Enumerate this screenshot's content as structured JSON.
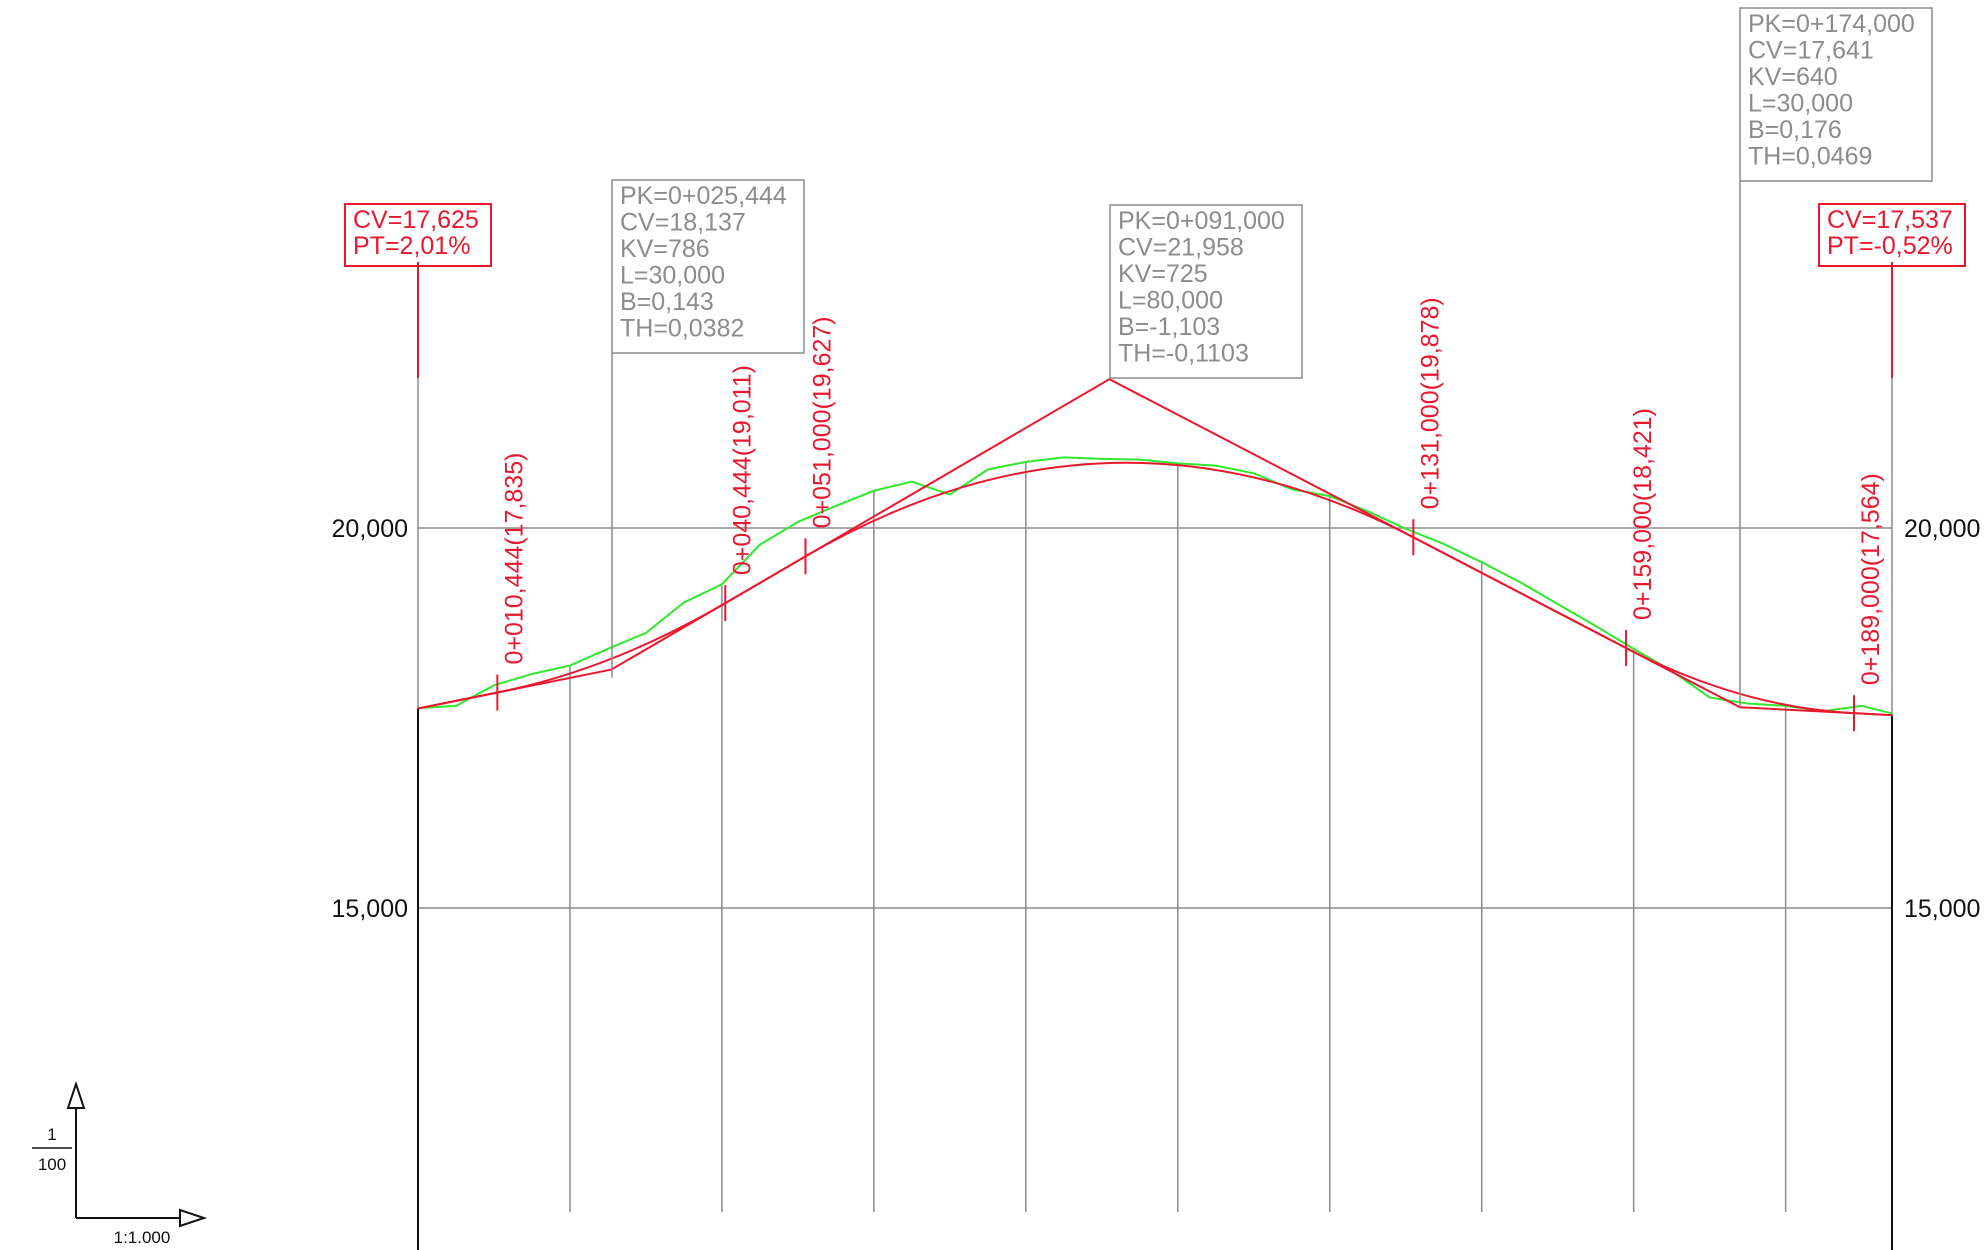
{
  "profile": {
    "y_axis": {
      "min": 10.0,
      "max": 22.0,
      "major_ticks": [
        15.0,
        20.0
      ],
      "tick_labels": [
        "15,000",
        "20,000"
      ]
    },
    "x_axis": {
      "min": 0,
      "max": 194
    },
    "guideline_stations": [
      20,
      40,
      60,
      80,
      100,
      120,
      140,
      160,
      180
    ],
    "vertical_scale": {
      "numerator": "1",
      "denominator": "100"
    },
    "horizontal_scale": "1:1.000",
    "start_point": {
      "station": 0,
      "elevation": 17.625,
      "labels": [
        "CV=17,625",
        "PT=2,01%"
      ]
    },
    "end_point": {
      "station": 194,
      "elevation": 17.537,
      "labels": [
        "CV=17,537",
        "PT=-0,52%"
      ]
    },
    "vertices": [
      {
        "station": 25.444,
        "elevation": 18.137,
        "lines": [
          "PK=0+025,444",
          "CV=18,137",
          "KV=786",
          "L=30,000",
          "B=0,143",
          "TH=0,0382"
        ]
      },
      {
        "station": 91.0,
        "elevation": 21.958,
        "lines": [
          "PK=0+091,000",
          "CV=21,958",
          "KV=725",
          "L=80,000",
          "B=-1,103",
          "TH=-0,1103"
        ]
      },
      {
        "station": 174.0,
        "elevation": 17.641,
        "lines": [
          "PK=0+174,000",
          "CV=17,641",
          "KV=640",
          "L=30,000",
          "B=0,176",
          "TH=0,0469"
        ]
      }
    ],
    "tangent_points": [
      {
        "station": 10.444,
        "elevation": 17.835,
        "label": "0+010,444(17,835)"
      },
      {
        "station": 40.444,
        "elevation": 19.011,
        "label": "0+040,444(19,011)"
      },
      {
        "station": 51.0,
        "elevation": 19.627,
        "label": "0+051,000(19,627)"
      },
      {
        "station": 131.0,
        "elevation": 19.878,
        "label": "0+131,000(19,878)"
      },
      {
        "station": 159.0,
        "elevation": 18.421,
        "label": "0+159,000(18,421)"
      },
      {
        "station": 189.0,
        "elevation": 17.564,
        "label": "0+189,000(17,564)"
      }
    ],
    "terrain_profile": [
      [
        0,
        17.63
      ],
      [
        5,
        17.66
      ],
      [
        10,
        17.93
      ],
      [
        15,
        18.08
      ],
      [
        20,
        18.19
      ],
      [
        25,
        18.41
      ],
      [
        30,
        18.62
      ],
      [
        35,
        19.02
      ],
      [
        40,
        19.26
      ],
      [
        45,
        19.78
      ],
      [
        50,
        20.08
      ],
      [
        55,
        20.29
      ],
      [
        60,
        20.49
      ],
      [
        65,
        20.61
      ],
      [
        70,
        20.44
      ],
      [
        75,
        20.77
      ],
      [
        80,
        20.87
      ],
      [
        85,
        20.93
      ],
      [
        90,
        20.91
      ],
      [
        95,
        20.9
      ],
      [
        100,
        20.85
      ],
      [
        105,
        20.82
      ],
      [
        110,
        20.72
      ],
      [
        115,
        20.51
      ],
      [
        120,
        20.42
      ],
      [
        125,
        20.22
      ],
      [
        130,
        19.99
      ],
      [
        135,
        19.79
      ],
      [
        140,
        19.55
      ],
      [
        145,
        19.29
      ],
      [
        150,
        19.0
      ],
      [
        155,
        18.71
      ],
      [
        160,
        18.41
      ],
      [
        165,
        18.12
      ],
      [
        170,
        17.77
      ],
      [
        175,
        17.69
      ],
      [
        180,
        17.66
      ],
      [
        185,
        17.59
      ],
      [
        190,
        17.66
      ],
      [
        194,
        17.56
      ]
    ],
    "colors": {
      "terrain": "#2fe82f",
      "grade": "#e8182f",
      "grid": "#8c8c8c",
      "axis": "#111111"
    }
  }
}
